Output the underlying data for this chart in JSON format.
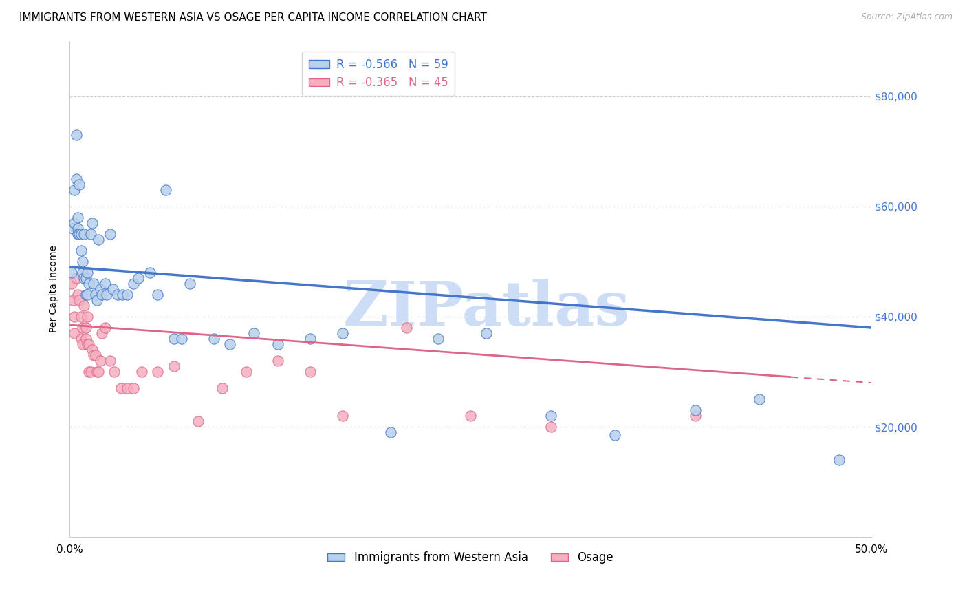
{
  "title": "IMMIGRANTS FROM WESTERN ASIA VS OSAGE PER CAPITA INCOME CORRELATION CHART",
  "source": "Source: ZipAtlas.com",
  "ylabel": "Per Capita Income",
  "right_ytick_labels": [
    "$20,000",
    "$40,000",
    "$60,000",
    "$80,000"
  ],
  "right_ytick_values": [
    20000,
    40000,
    60000,
    80000
  ],
  "legend_blue_r": "R = -0.566",
  "legend_blue_n": "N = 59",
  "legend_pink_r": "R = -0.365",
  "legend_pink_n": "N = 45",
  "legend_blue_label": "Immigrants from Western Asia",
  "legend_pink_label": "Osage",
  "blue_scatter_color": "#b8d0ea",
  "blue_line_color": "#4477cc",
  "pink_scatter_color": "#f5b0c0",
  "pink_line_color": "#dd6688",
  "watermark": "ZIPatlas",
  "watermark_color": "#ccddf5",
  "xlim": [
    0.0,
    0.5
  ],
  "ylim": [
    0,
    90000
  ],
  "blue_scatter_x": [
    0.001,
    0.002,
    0.003,
    0.003,
    0.004,
    0.004,
    0.005,
    0.005,
    0.005,
    0.006,
    0.006,
    0.007,
    0.007,
    0.008,
    0.008,
    0.009,
    0.009,
    0.01,
    0.01,
    0.011,
    0.011,
    0.012,
    0.013,
    0.014,
    0.015,
    0.016,
    0.017,
    0.018,
    0.019,
    0.02,
    0.022,
    0.023,
    0.025,
    0.027,
    0.03,
    0.033,
    0.036,
    0.04,
    0.043,
    0.05,
    0.055,
    0.06,
    0.065,
    0.07,
    0.075,
    0.09,
    0.1,
    0.115,
    0.13,
    0.15,
    0.17,
    0.2,
    0.23,
    0.26,
    0.3,
    0.34,
    0.39,
    0.43,
    0.48
  ],
  "blue_scatter_y": [
    48000,
    56000,
    63000,
    57000,
    73000,
    65000,
    58000,
    56000,
    55000,
    64000,
    55000,
    55000,
    52000,
    50000,
    48000,
    47000,
    55000,
    47000,
    44000,
    48000,
    44000,
    46000,
    55000,
    57000,
    46000,
    44000,
    43000,
    54000,
    45000,
    44000,
    46000,
    44000,
    55000,
    45000,
    44000,
    44000,
    44000,
    46000,
    47000,
    48000,
    44000,
    63000,
    36000,
    36000,
    46000,
    36000,
    35000,
    37000,
    35000,
    36000,
    37000,
    19000,
    36000,
    37000,
    22000,
    18500,
    23000,
    25000,
    14000
  ],
  "pink_scatter_x": [
    0.001,
    0.002,
    0.003,
    0.003,
    0.004,
    0.005,
    0.006,
    0.007,
    0.007,
    0.008,
    0.008,
    0.009,
    0.01,
    0.01,
    0.011,
    0.011,
    0.012,
    0.012,
    0.013,
    0.014,
    0.015,
    0.016,
    0.017,
    0.018,
    0.019,
    0.02,
    0.022,
    0.025,
    0.028,
    0.032,
    0.036,
    0.04,
    0.045,
    0.055,
    0.065,
    0.08,
    0.095,
    0.11,
    0.13,
    0.15,
    0.17,
    0.21,
    0.25,
    0.3,
    0.39
  ],
  "pink_scatter_y": [
    46000,
    43000,
    40000,
    37000,
    47000,
    44000,
    43000,
    40000,
    36000,
    38000,
    35000,
    42000,
    38000,
    36000,
    40000,
    35000,
    35000,
    30000,
    30000,
    34000,
    33000,
    33000,
    30000,
    30000,
    32000,
    37000,
    38000,
    32000,
    30000,
    27000,
    27000,
    27000,
    30000,
    30000,
    31000,
    21000,
    27000,
    30000,
    32000,
    30000,
    22000,
    38000,
    22000,
    20000,
    22000
  ],
  "blue_trend_x": [
    0.0,
    0.5
  ],
  "blue_trend_y": [
    49000,
    38000
  ],
  "pink_trend_x": [
    0.0,
    0.5
  ],
  "pink_trend_y": [
    38500,
    28000
  ],
  "title_fontsize": 11,
  "axis_label_fontsize": 10,
  "tick_fontsize": 11,
  "legend_fontsize": 12
}
